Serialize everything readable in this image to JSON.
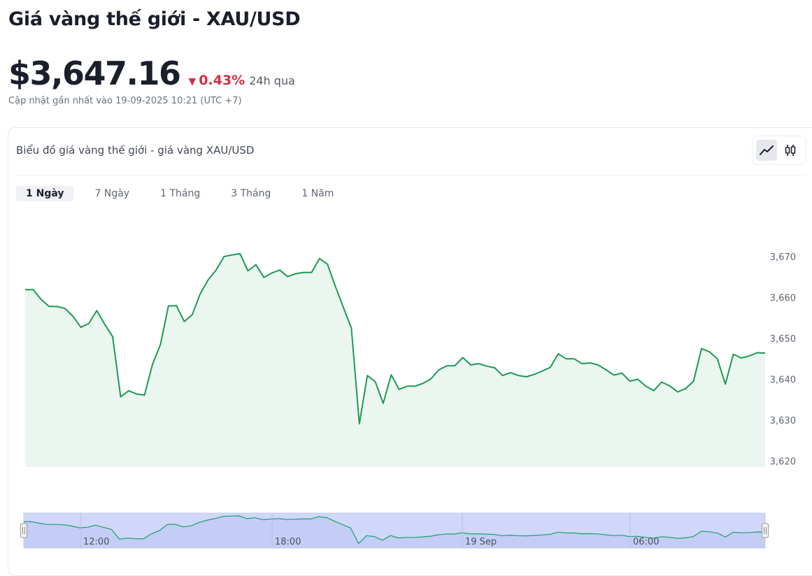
{
  "header": {
    "title": "Giá vàng thế giới - XAU/USD",
    "price": "$3,647.16",
    "change": "0.43%",
    "change_direction": "down",
    "period": "24h qua",
    "updated": "Cập nhật gần nhất vào 19-09-2025 10:21 (UTC +7)"
  },
  "chart_card": {
    "title": "Biểu đồ giá vàng thế giới - giá vàng XAU/USD",
    "chart_types": [
      {
        "name": "line",
        "icon": "line-chart-icon",
        "active": true
      },
      {
        "name": "candlestick",
        "icon": "candlestick-icon",
        "active": false
      }
    ],
    "tabs": [
      "1 Ngày",
      "7 Ngày",
      "1 Tháng",
      "3 Tháng",
      "1 Năm"
    ],
    "active_tab": 0
  },
  "colors": {
    "line": "#1c9a55",
    "fill": "#ebf6f0",
    "down": "#d32f45",
    "navigator_fill": "#d0d7fb",
    "navigator_line": "#19a06a"
  },
  "chart_data": {
    "type": "area",
    "ylim": [
      3620,
      3673
    ],
    "y_ticks": [
      3670,
      3660,
      3650,
      3640,
      3630,
      3620
    ],
    "y_tick_labels": [
      "3,670",
      "3,660",
      "3,650",
      "3,640",
      "3,630",
      "3,620"
    ],
    "navigator_labels": [
      "12:00",
      "18:00",
      "19 Sep",
      "06:00"
    ],
    "series": [
      {
        "values": [
          3661.9,
          3661.9,
          3659.5,
          3657.8,
          3657.8,
          3657.3,
          3655.4,
          3652.7,
          3653.6,
          3656.8,
          3653.4,
          3650.4,
          3635.7,
          3637.2,
          3636.4,
          3636.1,
          3643.6,
          3648.5,
          3657.9,
          3658.0,
          3654.1,
          3655.8,
          3660.9,
          3664.3,
          3666.7,
          3670.0,
          3670.4,
          3670.7,
          3666.5,
          3668.0,
          3664.9,
          3666.0,
          3666.7,
          3665.1,
          3665.8,
          3666.1,
          3666.1,
          3669.5,
          3668.1,
          3662.6,
          3657.5,
          3652.5,
          3629.1,
          3640.9,
          3639.4,
          3634.1,
          3641.1,
          3637.5,
          3638.3,
          3638.3,
          3639.0,
          3640.1,
          3642.3,
          3643.3,
          3643.3,
          3645.3,
          3643.5,
          3643.8,
          3643.2,
          3642.8,
          3640.9,
          3641.6,
          3640.9,
          3640.6,
          3641.2,
          3642.0,
          3642.9,
          3646.2,
          3645.0,
          3645.0,
          3643.8,
          3644.0,
          3643.5,
          3642.3,
          3641.0,
          3641.5,
          3639.5,
          3640.0,
          3638.3,
          3637.2,
          3639.3,
          3638.4,
          3636.9,
          3637.7,
          3639.5,
          3647.5,
          3646.7,
          3645.0,
          3638.8,
          3646.1,
          3645.2,
          3645.7,
          3646.5,
          3646.4
        ]
      }
    ]
  }
}
